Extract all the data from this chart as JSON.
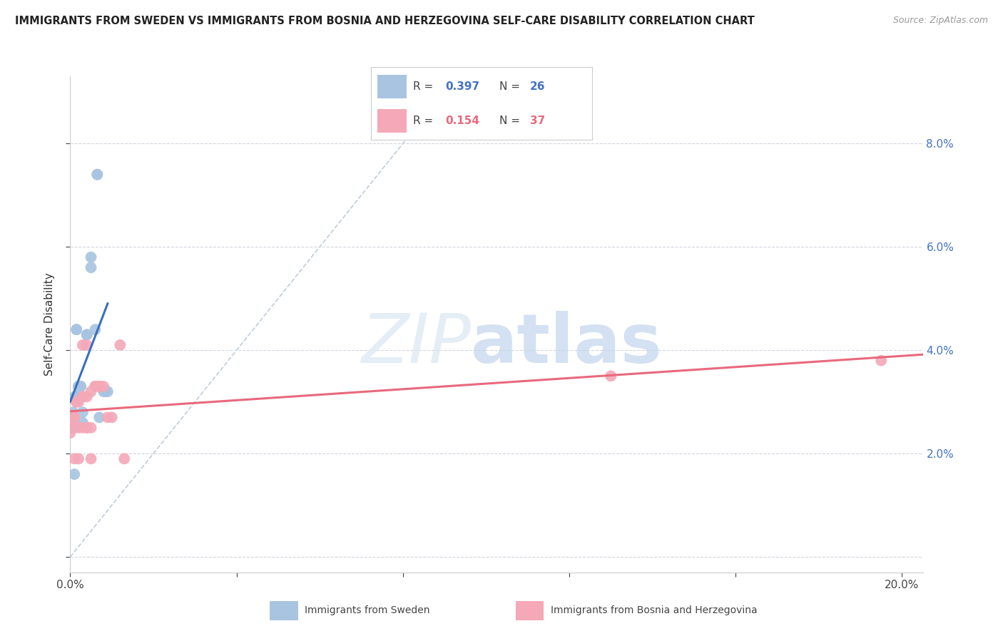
{
  "title": "IMMIGRANTS FROM SWEDEN VS IMMIGRANTS FROM BOSNIA AND HERZEGOVINA SELF-CARE DISABILITY CORRELATION CHART",
  "source": "Source: ZipAtlas.com",
  "ylabel": "Self-Care Disability",
  "xlim": [
    0.0,
    0.205
  ],
  "ylim": [
    -0.003,
    0.093
  ],
  "yticks": [
    0.0,
    0.02,
    0.04,
    0.06,
    0.08
  ],
  "xticks": [
    0.0,
    0.04,
    0.08,
    0.12,
    0.16,
    0.2
  ],
  "legend_sweden_R": "0.397",
  "legend_sweden_N": "26",
  "legend_bosnia_R": "0.154",
  "legend_bosnia_N": "37",
  "sweden_color": "#a8c4e0",
  "bosnia_color": "#f4a8b8",
  "sweden_line_color": "#3a6fbd",
  "bosnia_line_color": "#e8697d",
  "diagonal_color": "#c0ccd8",
  "sweden_x": [
    0.0007,
    0.0007,
    0.0012,
    0.0012,
    0.0012,
    0.0015,
    0.0015,
    0.002,
    0.002,
    0.0025,
    0.0025,
    0.003,
    0.003,
    0.004,
    0.004,
    0.005,
    0.005,
    0.006,
    0.0065,
    0.0065,
    0.007,
    0.008,
    0.0085,
    0.009,
    0.0,
    0.001
  ],
  "sweden_y": [
    0.028,
    0.025,
    0.031,
    0.031,
    0.031,
    0.044,
    0.044,
    0.033,
    0.033,
    0.033,
    0.033,
    0.028,
    0.026,
    0.043,
    0.043,
    0.056,
    0.058,
    0.044,
    0.074,
    0.074,
    0.027,
    0.032,
    0.032,
    0.032,
    0.027,
    0.016
  ],
  "bosnia_x": [
    0.0,
    0.0,
    0.0,
    0.0,
    0.0005,
    0.0005,
    0.001,
    0.001,
    0.0015,
    0.0015,
    0.002,
    0.002,
    0.003,
    0.003,
    0.003,
    0.003,
    0.004,
    0.004,
    0.004,
    0.004,
    0.005,
    0.005,
    0.006,
    0.006,
    0.007,
    0.007,
    0.008,
    0.009,
    0.01,
    0.012,
    0.013,
    0.0,
    0.001,
    0.002,
    0.13,
    0.195,
    0.005
  ],
  "bosnia_y": [
    0.026,
    0.026,
    0.026,
    0.026,
    0.027,
    0.027,
    0.027,
    0.027,
    0.03,
    0.03,
    0.03,
    0.025,
    0.025,
    0.031,
    0.031,
    0.041,
    0.031,
    0.025,
    0.041,
    0.025,
    0.032,
    0.025,
    0.033,
    0.033,
    0.033,
    0.033,
    0.033,
    0.027,
    0.027,
    0.041,
    0.019,
    0.024,
    0.019,
    0.019,
    0.035,
    0.038,
    0.019
  ],
  "sweden_line_x": [
    0.0,
    0.0085
  ],
  "bosnia_line_x": [
    0.0,
    0.2
  ]
}
